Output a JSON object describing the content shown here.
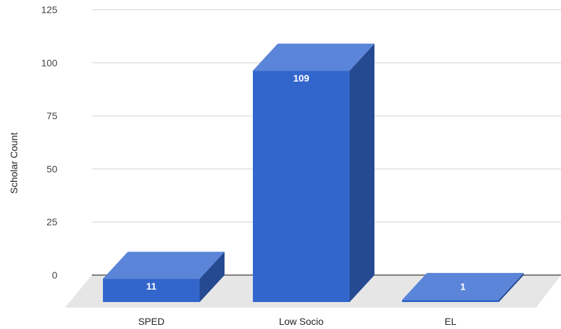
{
  "chart_data": {
    "type": "bar",
    "style": "3d",
    "categories": [
      "SPED",
      "Low Socio",
      "EL"
    ],
    "values": [
      11,
      109,
      1
    ],
    "data_labels": [
      "11",
      "109",
      "1"
    ],
    "title": "",
    "xlabel": "",
    "ylabel": "Scholar Count",
    "ylim": [
      0,
      125
    ],
    "yticks": [
      0,
      25,
      50,
      75,
      100,
      125
    ],
    "ytick_labels": [
      "0",
      "25",
      "50",
      "75",
      "100",
      "125"
    ],
    "grid": true,
    "legend": "none",
    "colors": {
      "bar_front": "#3366cc",
      "bar_top": "#5b85d9",
      "bar_side": "#254a92",
      "floor": "#e6e6e6",
      "grid": "#e0e0e0",
      "baseline": "#555555"
    }
  }
}
